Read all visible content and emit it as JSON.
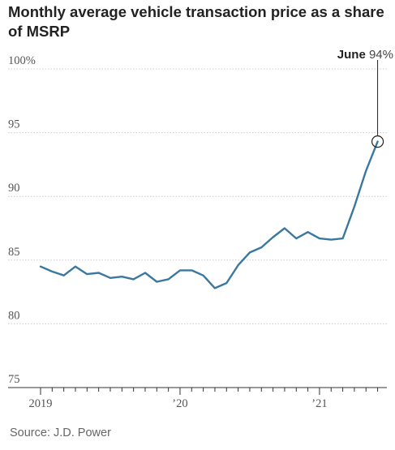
{
  "title": "Monthly average vehicle transaction price as a share of MSRP",
  "source": "Source: J.D. Power",
  "colors": {
    "line": "#3b78a0",
    "grid": "#cccccc",
    "text": "#222222",
    "muted": "#666666"
  },
  "chart_data": {
    "type": "line",
    "title": "Monthly average vehicle transaction price as a share of MSRP",
    "xlabel": "",
    "ylabel": "",
    "ylim": [
      75,
      100
    ],
    "yticks": [
      75,
      80,
      85,
      90,
      95,
      100
    ],
    "ytick_labels": [
      "75",
      "80",
      "85",
      "90",
      "95",
      "100%"
    ],
    "xticks": [
      {
        "index": 0,
        "label": "2019"
      },
      {
        "index": 12,
        "label": "’20"
      },
      {
        "index": 24,
        "label": "’21"
      }
    ],
    "grid": true,
    "x": [
      "2019-01",
      "2019-02",
      "2019-03",
      "2019-04",
      "2019-05",
      "2019-06",
      "2019-07",
      "2019-08",
      "2019-09",
      "2019-10",
      "2019-11",
      "2019-12",
      "2020-01",
      "2020-02",
      "2020-03",
      "2020-04",
      "2020-05",
      "2020-06",
      "2020-07",
      "2020-08",
      "2020-09",
      "2020-10",
      "2020-11",
      "2020-12",
      "2021-01",
      "2021-02",
      "2021-03",
      "2021-04",
      "2021-05",
      "2021-06"
    ],
    "values": [
      84.5,
      84.1,
      83.8,
      84.5,
      83.9,
      84.0,
      83.6,
      83.7,
      83.5,
      84.0,
      83.3,
      83.5,
      84.2,
      84.2,
      83.8,
      82.8,
      83.2,
      84.6,
      85.6,
      86.0,
      86.8,
      87.5,
      86.7,
      87.2,
      86.7,
      86.6,
      86.7,
      89.2,
      92.0,
      94.3
    ],
    "annotation": {
      "label": "June",
      "value_label": "94%",
      "index": 29
    }
  }
}
